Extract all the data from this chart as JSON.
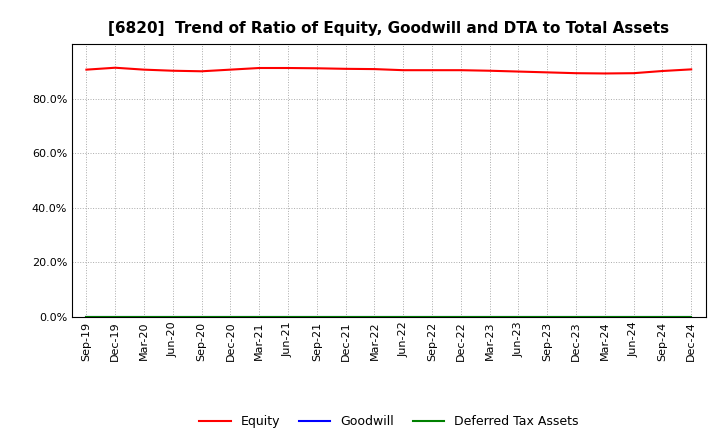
{
  "title": "[6820]  Trend of Ratio of Equity, Goodwill and DTA to Total Assets",
  "x_labels": [
    "Sep-19",
    "Dec-19",
    "Mar-20",
    "Jun-20",
    "Sep-20",
    "Dec-20",
    "Mar-21",
    "Jun-21",
    "Sep-21",
    "Dec-21",
    "Mar-22",
    "Jun-22",
    "Sep-22",
    "Dec-22",
    "Mar-23",
    "Jun-23",
    "Sep-23",
    "Dec-23",
    "Mar-24",
    "Jun-24",
    "Sep-24",
    "Dec-24"
  ],
  "equity": [
    0.906,
    0.913,
    0.906,
    0.902,
    0.9,
    0.906,
    0.912,
    0.912,
    0.911,
    0.909,
    0.908,
    0.904,
    0.904,
    0.904,
    0.902,
    0.899,
    0.896,
    0.893,
    0.892,
    0.893,
    0.901,
    0.907
  ],
  "goodwill": [
    0.0,
    0.0,
    0.0,
    0.0,
    0.0,
    0.0,
    0.0,
    0.0,
    0.0,
    0.0,
    0.0,
    0.0,
    0.0,
    0.0,
    0.0,
    0.0,
    0.0,
    0.0,
    0.0,
    0.0,
    0.0,
    0.0
  ],
  "dta": [
    0.0,
    0.0,
    0.0,
    0.0,
    0.0,
    0.0,
    0.0,
    0.0,
    0.0,
    0.0,
    0.0,
    0.0,
    0.0,
    0.0,
    0.0,
    0.0,
    0.0,
    0.0,
    0.0,
    0.0,
    0.0,
    0.0
  ],
  "equity_color": "#FF0000",
  "goodwill_color": "#0000FF",
  "dta_color": "#008000",
  "ylim": [
    0.0,
    1.0
  ],
  "yticks": [
    0.0,
    0.2,
    0.4,
    0.6,
    0.8
  ],
  "background_color": "#FFFFFF",
  "plot_bg_color": "#FFFFFF",
  "grid_color": "#AAAAAA",
  "title_fontsize": 11,
  "legend_labels": [
    "Equity",
    "Goodwill",
    "Deferred Tax Assets"
  ]
}
